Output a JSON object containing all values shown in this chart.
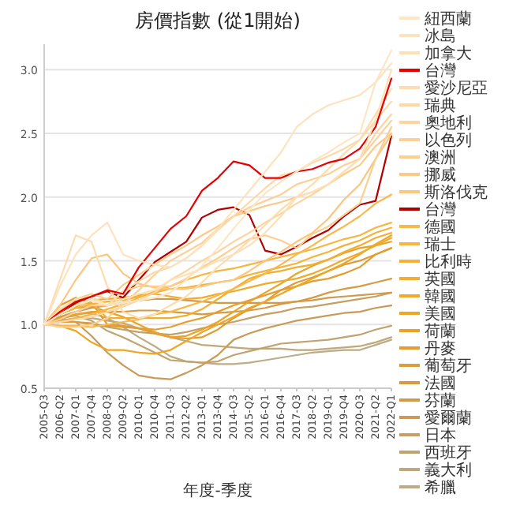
{
  "chart_data": {
    "type": "line",
    "title": "房價指數 (從1開始)",
    "xlabel": "年度-季度",
    "categories": [
      "2005-Q3",
      "2006-Q2",
      "2007-Q1",
      "2007-Q4",
      "2008-Q3",
      "2009-Q2",
      "2010-Q1",
      "2010-Q4",
      "2011-Q3",
      "2012-Q2",
      "2013-Q1",
      "2013-Q4",
      "2014-Q3",
      "2015-Q2",
      "2016-Q1",
      "2016-Q4",
      "2017-Q3",
      "2018-Q2",
      "2019-Q1",
      "2019-Q4",
      "2020-Q3",
      "2021-Q2",
      "2022-Q1"
    ],
    "ylim": [
      0.5,
      3.2
    ],
    "yticks": [
      0.5,
      {
        "value": 1,
        "label": "1.0"
      },
      1.5,
      {
        "value": 2,
        "label": "2.0"
      },
      2.5,
      {
        "value": 3,
        "label": "3.0"
      }
    ],
    "grid": "y",
    "legend": "right",
    "marker": "none",
    "line_style": "solid",
    "series": [
      {
        "name": "紐西蘭",
        "color": "#fde6c4",
        "values": [
          1.0,
          1.08,
          1.15,
          1.19,
          1.15,
          1.17,
          1.19,
          1.21,
          1.25,
          1.35,
          1.46,
          1.6,
          1.75,
          1.9,
          2.03,
          2.12,
          2.2,
          2.28,
          2.35,
          2.43,
          2.5,
          2.9,
          3.15
        ]
      },
      {
        "name": "冰島",
        "color": "#fde3bd",
        "values": [
          1.0,
          1.3,
          1.55,
          1.7,
          1.8,
          1.55,
          1.5,
          1.47,
          1.45,
          1.52,
          1.62,
          1.75,
          1.9,
          2.05,
          2.2,
          2.35,
          2.55,
          2.65,
          2.72,
          2.76,
          2.8,
          2.9,
          3.05
        ]
      },
      {
        "name": "加拿大",
        "color": "#fde0b6",
        "values": [
          1.0,
          1.08,
          1.15,
          1.2,
          1.15,
          1.2,
          1.24,
          1.27,
          1.35,
          1.39,
          1.44,
          1.5,
          1.55,
          1.62,
          1.72,
          1.85,
          2.0,
          2.04,
          2.1,
          2.2,
          2.3,
          2.6,
          3.0
        ]
      },
      {
        "name": "台灣",
        "color": "#e60000",
        "values": [
          1.0,
          1.1,
          1.18,
          1.22,
          1.27,
          1.24,
          1.45,
          1.6,
          1.75,
          1.85,
          2.05,
          2.15,
          2.28,
          2.25,
          2.15,
          2.15,
          2.2,
          2.22,
          2.27,
          2.3,
          2.38,
          2.55,
          2.93
        ]
      },
      {
        "name": "愛沙尼亞",
        "color": "#fddcb0",
        "values": [
          1.0,
          1.35,
          1.7,
          1.65,
          1.3,
          1.1,
          1.05,
          1.08,
          1.15,
          1.22,
          1.33,
          1.45,
          1.55,
          1.66,
          1.78,
          1.9,
          2.0,
          2.1,
          2.22,
          2.34,
          2.45,
          2.65,
          2.85
        ]
      },
      {
        "name": "瑞典",
        "color": "#fdd9a8",
        "values": [
          1.0,
          1.12,
          1.2,
          1.22,
          1.15,
          1.26,
          1.34,
          1.41,
          1.45,
          1.52,
          1.62,
          1.74,
          1.85,
          1.96,
          2.07,
          2.17,
          2.2,
          2.27,
          2.32,
          2.38,
          2.45,
          2.6,
          2.75
        ]
      },
      {
        "name": "奧地利",
        "color": "#fdd5a0",
        "values": [
          1.0,
          1.02,
          1.04,
          1.06,
          1.1,
          1.14,
          1.19,
          1.25,
          1.35,
          1.42,
          1.5,
          1.57,
          1.65,
          1.72,
          1.8,
          1.87,
          1.95,
          2.02,
          2.1,
          2.2,
          2.3,
          2.5,
          2.65
        ]
      },
      {
        "name": "以色列",
        "color": "#fcd198",
        "values": [
          1.0,
          0.98,
          0.98,
          1.0,
          1.05,
          1.16,
          1.27,
          1.39,
          1.5,
          1.57,
          1.64,
          1.75,
          1.85,
          1.92,
          1.97,
          2.02,
          2.1,
          2.14,
          2.18,
          2.25,
          2.3,
          2.45,
          2.6
        ]
      },
      {
        "name": "澳洲",
        "color": "#fcce90",
        "values": [
          1.0,
          1.04,
          1.1,
          1.15,
          1.15,
          1.26,
          1.3,
          1.3,
          1.3,
          1.36,
          1.45,
          1.52,
          1.6,
          1.67,
          1.7,
          1.66,
          1.6,
          1.71,
          1.77,
          1.86,
          1.95,
          2.3,
          2.55
        ]
      },
      {
        "name": "挪威",
        "color": "#fcca88",
        "values": [
          1.0,
          1.11,
          1.2,
          1.24,
          1.2,
          1.31,
          1.39,
          1.47,
          1.55,
          1.62,
          1.7,
          1.77,
          1.85,
          1.89,
          1.93,
          1.96,
          2.0,
          2.04,
          2.1,
          2.18,
          2.25,
          2.4,
          2.5
        ]
      },
      {
        "name": "斯洛伐克",
        "color": "#fbc680",
        "values": [
          1.0,
          1.15,
          1.35,
          1.52,
          1.55,
          1.4,
          1.32,
          1.29,
          1.28,
          1.28,
          1.3,
          1.33,
          1.35,
          1.42,
          1.5,
          1.57,
          1.65,
          1.72,
          1.83,
          1.98,
          2.1,
          2.3,
          2.49
        ]
      },
      {
        "name": "台灣",
        "color": "#b00000",
        "values": [
          1.0,
          1.08,
          1.17,
          1.22,
          1.26,
          1.21,
          1.35,
          1.49,
          1.57,
          1.65,
          1.84,
          1.9,
          1.92,
          1.86,
          1.58,
          1.55,
          1.61,
          1.68,
          1.74,
          1.85,
          1.94,
          1.97,
          2.48
        ]
      },
      {
        "name": "德國",
        "color": "#f8b94a",
        "values": [
          1.0,
          0.99,
          0.99,
          0.98,
          1.0,
          1.02,
          1.04,
          1.08,
          1.1,
          1.14,
          1.18,
          1.23,
          1.28,
          1.34,
          1.4,
          1.47,
          1.55,
          1.62,
          1.7,
          1.77,
          1.85,
          1.95,
          2.02
        ]
      },
      {
        "name": "瑞士",
        "color": "#f6b63f",
        "values": [
          1.0,
          1.02,
          1.05,
          1.08,
          1.12,
          1.16,
          1.21,
          1.26,
          1.3,
          1.35,
          1.39,
          1.42,
          1.44,
          1.47,
          1.5,
          1.53,
          1.56,
          1.59,
          1.63,
          1.67,
          1.7,
          1.76,
          1.8
        ]
      },
      {
        "name": "比利時",
        "color": "#f4b238",
        "values": [
          1.0,
          1.08,
          1.13,
          1.16,
          1.18,
          1.19,
          1.22,
          1.25,
          1.28,
          1.29,
          1.31,
          1.33,
          1.35,
          1.39,
          1.42,
          1.45,
          1.48,
          1.53,
          1.57,
          1.62,
          1.66,
          1.72,
          1.76
        ]
      },
      {
        "name": "英國",
        "color": "#f2ae30",
        "values": [
          1.0,
          1.09,
          1.16,
          1.17,
          1.05,
          1.05,
          1.05,
          1.05,
          1.05,
          1.07,
          1.12,
          1.2,
          1.28,
          1.36,
          1.4,
          1.42,
          1.45,
          1.47,
          1.51,
          1.57,
          1.62,
          1.68,
          1.72
        ]
      },
      {
        "name": "韓國",
        "color": "#f0aa2a",
        "values": [
          1.0,
          1.08,
          1.14,
          1.19,
          1.2,
          1.21,
          1.23,
          1.24,
          1.22,
          1.2,
          1.21,
          1.24,
          1.26,
          1.29,
          1.32,
          1.34,
          1.36,
          1.4,
          1.45,
          1.51,
          1.56,
          1.62,
          1.68
        ]
      },
      {
        "name": "美國",
        "color": "#eea624",
        "values": [
          1.0,
          0.99,
          0.95,
          0.86,
          0.8,
          0.8,
          0.78,
          0.77,
          0.8,
          0.87,
          0.94,
          1.0,
          1.06,
          1.13,
          1.18,
          1.24,
          1.3,
          1.36,
          1.42,
          1.48,
          1.55,
          1.63,
          1.7
        ]
      },
      {
        "name": "荷蘭",
        "color": "#e9a22a",
        "values": [
          1.0,
          1.05,
          1.08,
          1.1,
          1.1,
          1.06,
          1.0,
          0.94,
          0.9,
          0.91,
          0.96,
          1.02,
          1.1,
          1.18,
          1.25,
          1.32,
          1.4,
          1.46,
          1.51,
          1.56,
          1.6,
          1.62,
          1.65
        ]
      },
      {
        "name": "丹麥",
        "color": "#e49e30",
        "values": [
          1.0,
          1.15,
          1.21,
          1.17,
          1.0,
          0.99,
          0.97,
          0.96,
          0.98,
          1.02,
          1.05,
          1.1,
          1.15,
          1.19,
          1.23,
          1.27,
          1.3,
          1.34,
          1.36,
          1.4,
          1.45,
          1.55,
          1.6
        ]
      },
      {
        "name": "葡萄牙",
        "color": "#dd9c38",
        "values": [
          1.0,
          1.02,
          1.02,
          1.0,
          0.99,
          0.98,
          0.97,
          0.93,
          0.9,
          0.89,
          0.9,
          0.96,
          1.05,
          1.12,
          1.18,
          1.27,
          1.33,
          1.37,
          1.42,
          1.47,
          1.5,
          1.55,
          1.6
        ]
      },
      {
        "name": "法國",
        "color": "#d69a42",
        "values": [
          1.0,
          1.08,
          1.13,
          1.14,
          1.1,
          1.1,
          1.11,
          1.11,
          1.1,
          1.09,
          1.08,
          1.09,
          1.1,
          1.11,
          1.13,
          1.16,
          1.18,
          1.21,
          1.25,
          1.28,
          1.3,
          1.33,
          1.36
        ]
      },
      {
        "name": "芬蘭",
        "color": "#cf9a4c",
        "values": [
          1.0,
          1.06,
          1.1,
          1.13,
          1.15,
          1.17,
          1.19,
          1.2,
          1.2,
          1.19,
          1.18,
          1.17,
          1.17,
          1.17,
          1.17,
          1.17,
          1.18,
          1.19,
          1.21,
          1.22,
          1.23,
          1.24,
          1.25
        ]
      },
      {
        "name": "愛爾蘭",
        "color": "#c99a58",
        "values": [
          1.0,
          1.04,
          1.02,
          0.91,
          0.78,
          0.68,
          0.6,
          0.58,
          0.57,
          0.62,
          0.68,
          0.76,
          0.88,
          0.93,
          0.97,
          1.0,
          1.03,
          1.05,
          1.07,
          1.09,
          1.1,
          1.13,
          1.15
        ]
      },
      {
        "name": "日本",
        "color": "#c4a064",
        "values": [
          1.0,
          1.02,
          1.02,
          1.01,
          0.98,
          0.96,
          0.94,
          0.93,
          0.92,
          0.94,
          0.97,
          1.0,
          1.02,
          1.05,
          1.08,
          1.1,
          1.13,
          1.14,
          1.16,
          1.18,
          1.2,
          1.22,
          1.25
        ]
      },
      {
        "name": "西班牙",
        "color": "#c0a470",
        "values": [
          1.0,
          1.05,
          1.07,
          1.03,
          0.95,
          0.9,
          0.84,
          0.78,
          0.72,
          0.71,
          0.7,
          0.71,
          0.76,
          0.79,
          0.82,
          0.85,
          0.86,
          0.87,
          0.88,
          0.9,
          0.92,
          0.96,
          0.99
        ]
      },
      {
        "name": "義大利",
        "color": "#bea87c",
        "values": [
          1.0,
          1.03,
          1.05,
          1.05,
          1.03,
          1.01,
          0.97,
          0.94,
          0.9,
          0.87,
          0.84,
          0.83,
          0.82,
          0.81,
          0.81,
          0.81,
          0.8,
          0.8,
          0.81,
          0.82,
          0.83,
          0.86,
          0.9
        ]
      },
      {
        "name": "希臘",
        "color": "#bcac88",
        "values": [
          1.0,
          1.04,
          1.08,
          1.09,
          1.05,
          0.98,
          0.9,
          0.83,
          0.75,
          0.71,
          0.7,
          0.69,
          0.69,
          0.7,
          0.72,
          0.74,
          0.76,
          0.78,
          0.79,
          0.8,
          0.8,
          0.84,
          0.88
        ]
      }
    ]
  }
}
